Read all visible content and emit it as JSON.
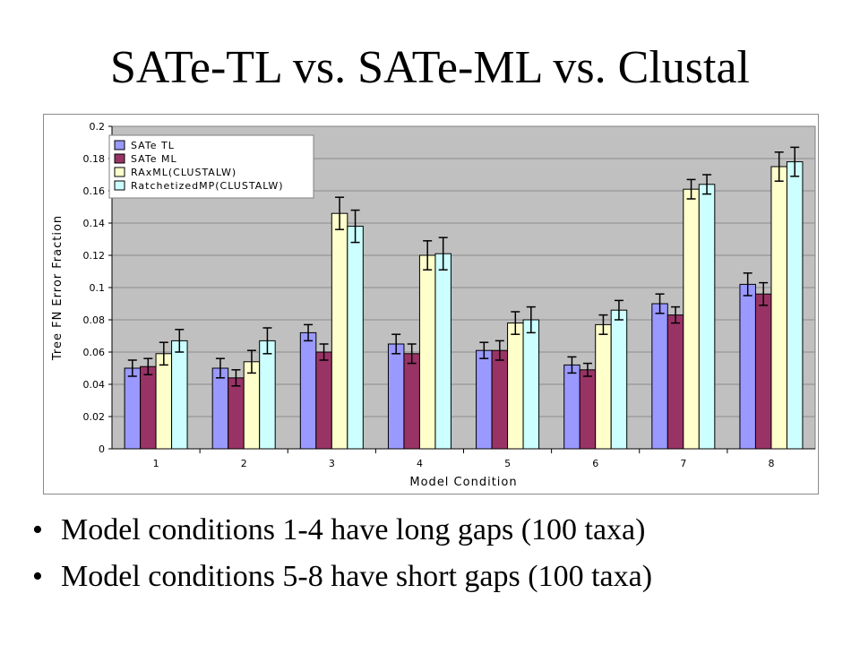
{
  "slide": {
    "title": "SATe-TL vs. SATe-ML vs. Clustal",
    "bullets": [
      "Model conditions 1-4 have long gaps (100 taxa)",
      "Model conditions 5-8 have short gaps (100 taxa)"
    ],
    "bullet_char": "•"
  },
  "chart_data": {
    "type": "bar",
    "title": "",
    "xlabel": "Model Condition",
    "ylabel": "Tree FN Error Fraction",
    "categories": [
      "1",
      "2",
      "3",
      "4",
      "5",
      "6",
      "7",
      "8"
    ],
    "ylim": [
      0,
      0.2
    ],
    "yticks": [
      "0",
      "0.02",
      "0.04",
      "0.06",
      "0.08",
      "0.1",
      "0.12",
      "0.14",
      "0.16",
      "0.18",
      "0.2"
    ],
    "grid": true,
    "legend_position": "top-left",
    "plot_background": "#c0c0c0",
    "series": [
      {
        "name": "SATe TL",
        "color": "#9999ff",
        "values": [
          0.05,
          0.05,
          0.072,
          0.065,
          0.061,
          0.052,
          0.09,
          0.102
        ],
        "errors": [
          0.005,
          0.006,
          0.005,
          0.006,
          0.005,
          0.005,
          0.006,
          0.007
        ]
      },
      {
        "name": "SATe ML",
        "color": "#993366",
        "values": [
          0.051,
          0.044,
          0.06,
          0.059,
          0.061,
          0.049,
          0.083,
          0.096
        ],
        "errors": [
          0.005,
          0.005,
          0.005,
          0.006,
          0.006,
          0.004,
          0.005,
          0.007
        ]
      },
      {
        "name": "RAxML(CLUSTALW)",
        "color": "#ffffcc",
        "values": [
          0.059,
          0.054,
          0.146,
          0.12,
          0.078,
          0.077,
          0.161,
          0.175
        ],
        "errors": [
          0.007,
          0.007,
          0.01,
          0.009,
          0.007,
          0.006,
          0.006,
          0.009
        ]
      },
      {
        "name": "RatchetizedMP(CLUSTALW)",
        "color": "#ccffff",
        "values": [
          0.067,
          0.067,
          0.138,
          0.121,
          0.08,
          0.086,
          0.164,
          0.178
        ],
        "errors": [
          0.007,
          0.008,
          0.01,
          0.01,
          0.008,
          0.006,
          0.006,
          0.009
        ]
      }
    ]
  }
}
